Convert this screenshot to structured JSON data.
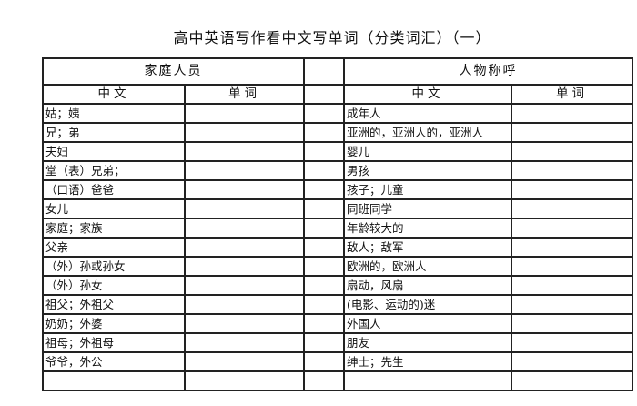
{
  "title": "高中英语写作看中文写单词（分类词汇）（一）",
  "left": {
    "heading": "家庭人员",
    "col_chinese": "中文",
    "col_word": "单词",
    "rows": [
      "姑；姨",
      "兄；弟",
      "夫妇",
      "堂（表）兄弟；",
      "（口语）爸爸",
      "女儿",
      "家庭；家族",
      "父亲",
      "（外）孙或孙女",
      "（外）孙女",
      "祖父；外祖父",
      "奶奶；外婆",
      "祖母；外祖母",
      "爷爷，外公"
    ]
  },
  "right": {
    "heading": "人物称呼",
    "col_chinese": "中文",
    "col_word": "单词",
    "rows": [
      " 成年人",
      "亚洲的，亚洲人的，亚洲人",
      "婴儿",
      "男孩",
      " 孩子；儿童",
      "同班同学",
      "年龄较大的",
      "敌人；敌军",
      "欧洲的，欧洲人",
      "扇动，风扇",
      "(电影、运动的)迷",
      "外国人",
      "朋友",
      "绅士；先生"
    ]
  }
}
